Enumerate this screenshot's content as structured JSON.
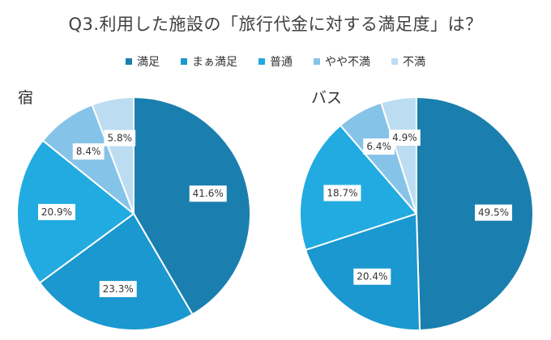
{
  "title": "Q3.利用した施設の「旅行代金に対する満足度」は？",
  "legend": [
    {
      "label": "満足",
      "color": "#1a7fae"
    },
    {
      "label": "まぁ満足",
      "color": "#1a98cf"
    },
    {
      "label": "普通",
      "color": "#22abe0"
    },
    {
      "label": "やや不満",
      "color": "#86c3e8"
    },
    {
      "label": "不満",
      "color": "#bcdcf2"
    }
  ],
  "chart_data": [
    {
      "type": "pie",
      "title": "宿",
      "categories": [
        "満足",
        "まぁ満足",
        "普通",
        "やや不満",
        "不満"
      ],
      "values": [
        41.6,
        23.3,
        20.9,
        8.4,
        5.8
      ],
      "labels": [
        "41.6%",
        "23.3%",
        "20.9%",
        "8.4%",
        "5.8%"
      ],
      "start_angle": "top",
      "direction": "clockwise"
    },
    {
      "type": "pie",
      "title": "バス",
      "categories": [
        "満足",
        "まぁ満足",
        "普通",
        "やや不満",
        "不満"
      ],
      "values": [
        49.5,
        20.4,
        18.7,
        6.4,
        4.9
      ],
      "labels": [
        "49.5%",
        "20.4%",
        "18.7%",
        "6.4%",
        "4.9%"
      ],
      "start_angle": "top",
      "direction": "clockwise"
    }
  ]
}
